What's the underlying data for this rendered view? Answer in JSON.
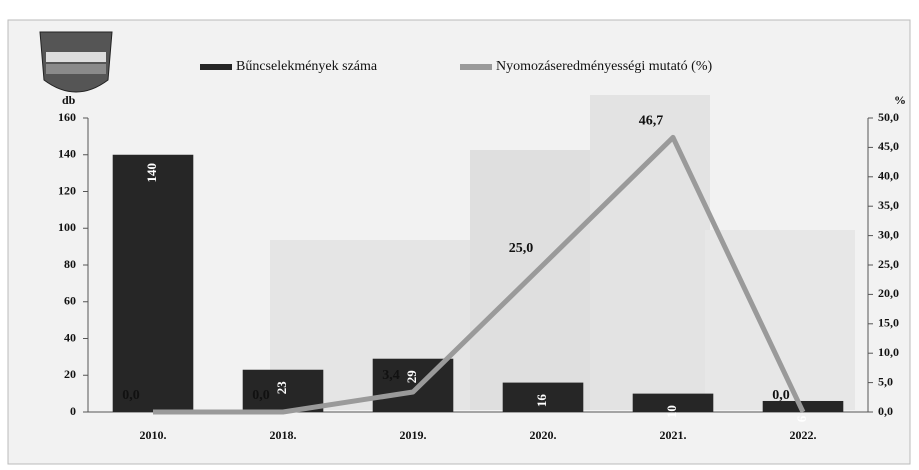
{
  "chart_data": {
    "type": "combo",
    "y_label": "db",
    "y2_label": "%",
    "categories": [
      "2010.",
      "2018.",
      "2019.",
      "2020.",
      "2021.",
      "2022."
    ],
    "series": [
      {
        "name": "Bűncselekmények száma",
        "color": "#262626",
        "values": [
          140,
          23,
          29,
          16,
          10,
          6
        ]
      },
      {
        "name": "Nyomozáseredményességi mutató (%)",
        "color": "#9a9a9a",
        "axis": "y2",
        "values": [
          0.0,
          0.0,
          3.4,
          25.0,
          46.7,
          0.0
        ],
        "value_labels": [
          "0,0",
          "0,0",
          "3,4",
          "25,0",
          "46,7",
          "0,0"
        ]
      }
    ],
    "ylim": [
      0,
      160
    ],
    "yticks": [
      0,
      20,
      40,
      60,
      80,
      100,
      120,
      140,
      160
    ],
    "y2lim": [
      0,
      50
    ],
    "y2ticks": [
      {
        "value": 0,
        "label": "0,0"
      },
      {
        "value": 5,
        "label": "5,0"
      },
      {
        "value": 10,
        "label": "10,0"
      },
      {
        "value": 15,
        "label": "15,0"
      },
      {
        "value": 20,
        "label": "20,0"
      },
      {
        "value": 25,
        "label": "25,0"
      },
      {
        "value": 30,
        "label": "30,0"
      },
      {
        "value": 35,
        "label": "35,0"
      },
      {
        "value": 40,
        "label": "40,0"
      },
      {
        "value": 45,
        "label": "45,0"
      },
      {
        "value": 50,
        "label": "50,0"
      }
    ]
  }
}
